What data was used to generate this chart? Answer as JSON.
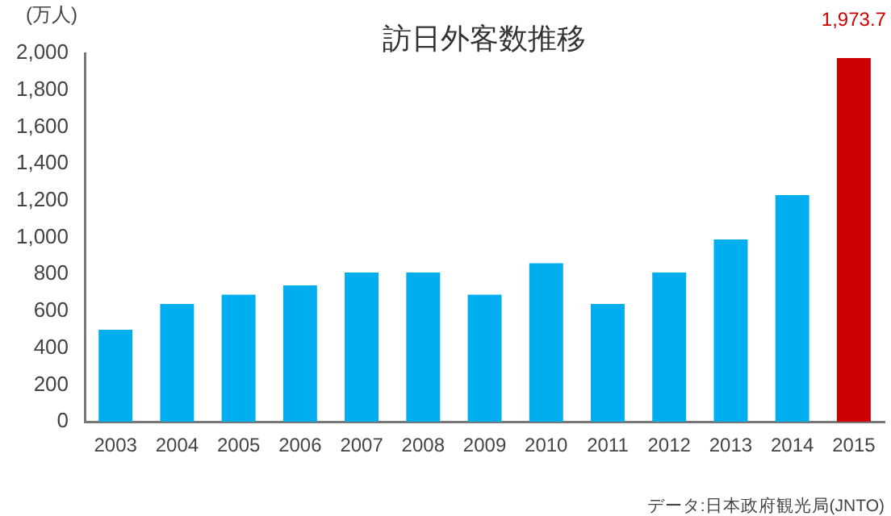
{
  "chart_data": {
    "type": "bar",
    "title": "訪日外客数推移",
    "ylabel": "(万人)",
    "categories": [
      "2003",
      "2004",
      "2005",
      "2006",
      "2007",
      "2008",
      "2009",
      "2010",
      "2011",
      "2012",
      "2013",
      "2014",
      "2015"
    ],
    "values": [
      500,
      640,
      690,
      740,
      810,
      810,
      690,
      860,
      640,
      810,
      990,
      1230,
      1973.7
    ],
    "colors": [
      "#00adef",
      "#00adef",
      "#00adef",
      "#00adef",
      "#00adef",
      "#00adef",
      "#00adef",
      "#00adef",
      "#00adef",
      "#00adef",
      "#00adef",
      "#00adef",
      "#cc0000"
    ],
    "value_labels": [
      null,
      null,
      null,
      null,
      null,
      null,
      null,
      null,
      null,
      null,
      null,
      null,
      "1,973.7"
    ],
    "ylim": [
      0,
      2000
    ],
    "yticks": [
      0,
      {
        "value": 200,
        "label": "200"
      },
      {
        "value": 400,
        "label": "400"
      },
      {
        "value": 600,
        "label": "600"
      },
      {
        "value": 800,
        "label": "800"
      },
      {
        "value": 1000,
        "label": "1,000"
      },
      {
        "value": 1200,
        "label": "1,200"
      },
      {
        "value": 1400,
        "label": "1,400"
      },
      {
        "value": 1600,
        "label": "1,600"
      },
      {
        "value": 1800,
        "label": "1,800"
      },
      {
        "value": 2000,
        "label": "2,000"
      }
    ],
    "annotations": [
      "データ:日本政府観光局(JNTO)"
    ],
    "grid": false,
    "legend": false
  }
}
